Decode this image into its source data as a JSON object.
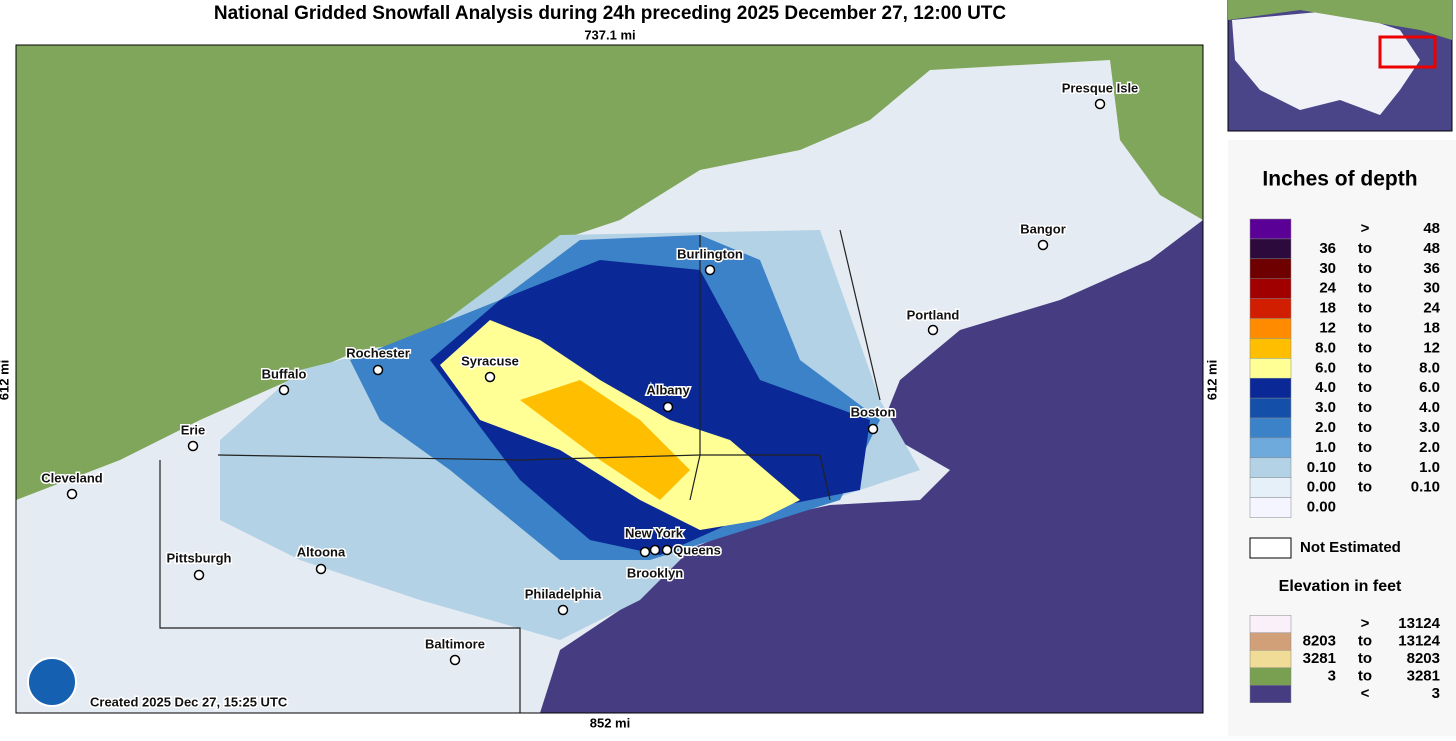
{
  "title": "National Gridded Snowfall Analysis during 24h preceding 2025 December 27, 12:00 UTC",
  "scale": {
    "top": "737.1 mi",
    "bottom": "852 mi",
    "left": "612 mi",
    "right": "612 mi"
  },
  "cities": [
    "Presque Isle",
    "Burlington",
    "Bangor",
    "Portland",
    "Rochester",
    "Syracuse",
    "Buffalo",
    "Albany",
    "Boston",
    "Erie",
    "Cleveland",
    "New York",
    "Queens",
    "Brooklyn",
    "Pittsburgh",
    "Altoona",
    "Philadelphia",
    "Baltimore"
  ],
  "created": "Created 2025 Dec 27, 15:25 UTC",
  "legend": {
    "title": "Inches of depth",
    "rows": [
      {
        "color": "#5a0096",
        "sep": ">",
        "hi": "48"
      },
      {
        "color": "#2d0a3c",
        "lo": "36",
        "sep": "to",
        "hi": "48"
      },
      {
        "color": "#6e0000",
        "lo": "30",
        "sep": "to",
        "hi": "36"
      },
      {
        "color": "#a00000",
        "lo": "24",
        "sep": "to",
        "hi": "30"
      },
      {
        "color": "#d21e00",
        "lo": "18",
        "sep": "to",
        "hi": "24"
      },
      {
        "color": "#ff8c00",
        "lo": "12",
        "sep": "to",
        "hi": "18"
      },
      {
        "color": "#ffbe00",
        "lo": "8.0",
        "sep": "to",
        "hi": "12"
      },
      {
        "color": "#ffff96",
        "lo": "6.0",
        "sep": "to",
        "hi": "8.0"
      },
      {
        "color": "#0a2896",
        "lo": "4.0",
        "sep": "to",
        "hi": "6.0"
      },
      {
        "color": "#1450aa",
        "lo": "3.0",
        "sep": "to",
        "hi": "4.0"
      },
      {
        "color": "#3c82c8",
        "lo": "2.0",
        "sep": "to",
        "hi": "3.0"
      },
      {
        "color": "#6eaadc",
        "lo": "1.0",
        "sep": "to",
        "hi": "2.0"
      },
      {
        "color": "#b4d2e6",
        "lo": "0.10",
        "sep": "to",
        "hi": "1.0"
      },
      {
        "color": "#e6f0f8",
        "lo": "0.00",
        "sep": "to",
        "hi": "0.10"
      },
      {
        "color": "#f5f5ff",
        "lo": "0.00"
      }
    ],
    "not_estimated": "Not Estimated",
    "elevation_title": "Elevation in feet",
    "elevation_rows": [
      {
        "color": "#faf0fa",
        "sep": ">",
        "hi": "13124"
      },
      {
        "color": "#d2a078",
        "lo": "8203",
        "sep": "to",
        "hi": "13124"
      },
      {
        "color": "#f0dc96",
        "lo": "3281",
        "sep": "to",
        "hi": "8203"
      },
      {
        "color": "#78a050",
        "lo": "3",
        "sep": "to",
        "hi": "3281"
      },
      {
        "color": "#463c82",
        "sep": "<",
        "hi": "3"
      }
    ]
  }
}
